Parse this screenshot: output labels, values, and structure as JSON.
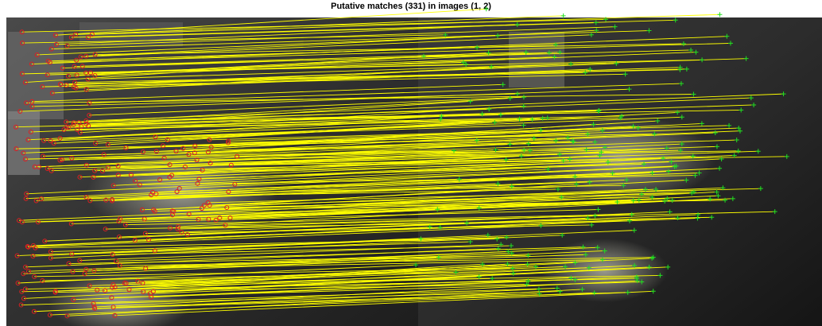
{
  "title": "Putative matches (331) in images (1, 2)"
}
